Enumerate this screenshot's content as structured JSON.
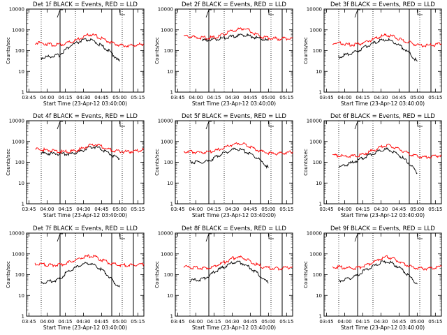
{
  "figure": {
    "x_tick_labels": [
      "03:45",
      "04:00",
      "04:15",
      "04:30",
      "04:45",
      "05:00",
      "05:15"
    ],
    "y_tick_labels": [
      "1",
      "10",
      "100",
      "1000",
      "10000"
    ],
    "xlabel": "Start Time (23-Apr-12 03:40:00)",
    "ylabel": "Counts/sec",
    "colors": {
      "events": "#000000",
      "lld": "#ff0000"
    }
  },
  "chart_data": [
    {
      "type": "line",
      "title": "Det 1f BLACK = Events, RED = LLD",
      "xlabel": "Start Time (23-Apr-12 03:40:00)",
      "ylabel": "Counts/sec",
      "ylim": [
        1,
        10000
      ],
      "yscale": "log",
      "x": [
        "03:50",
        "03:55",
        "04:00",
        "04:05",
        "04:10",
        "04:15",
        "04:20",
        "04:25",
        "04:30",
        "04:35",
        "04:40",
        "04:45",
        "04:50",
        "04:55",
        "05:00",
        "05:05",
        "05:10",
        "05:15",
        "05:20"
      ],
      "series": [
        {
          "values": [
            null,
            45,
            50,
            55,
            60,
            110,
            180,
            240,
            320,
            330,
            260,
            170,
            110,
            60,
            30,
            null,
            null,
            null,
            null
          ]
        },
        {
          "values": [
            240,
            230,
            210,
            190,
            190,
            220,
            260,
            330,
            450,
            600,
            520,
            380,
            280,
            220,
            190,
            170,
            175,
            190,
            210
          ]
        }
      ]
    },
    {
      "type": "line",
      "title": "Det 2f BLACK = Events, RED = LLD",
      "xlabel": "Start Time (23-Apr-12 03:40:00)",
      "ylabel": "Counts/sec",
      "ylim": [
        1,
        10000
      ],
      "yscale": "log",
      "x": [
        "03:50",
        "03:55",
        "04:00",
        "04:05",
        "04:10",
        "04:15",
        "04:20",
        "04:25",
        "04:30",
        "04:35",
        "04:40",
        "04:45",
        "04:50",
        "04:55",
        "05:00",
        "05:05",
        "05:10",
        "05:15",
        "05:20"
      ],
      "series": [
        {
          "values": [
            null,
            null,
            null,
            300,
            320,
            350,
            380,
            420,
            480,
            540,
            560,
            500,
            420,
            360,
            300,
            null,
            null,
            null,
            null
          ]
        },
        {
          "values": [
            480,
            470,
            440,
            420,
            410,
            430,
            520,
            700,
            900,
            1050,
            1150,
            900,
            600,
            450,
            400,
            380,
            370,
            380,
            420
          ]
        }
      ]
    },
    {
      "type": "line",
      "title": "Det 3f BLACK = Events, RED = LLD",
      "xlabel": "Start Time (23-Apr-12 03:40:00)",
      "ylabel": "Counts/sec",
      "ylim": [
        1,
        10000
      ],
      "yscale": "log",
      "x": [
        "03:50",
        "03:55",
        "04:00",
        "04:05",
        "04:10",
        "04:15",
        "04:20",
        "04:25",
        "04:30",
        "04:35",
        "04:40",
        "04:45",
        "04:50",
        "04:55",
        "05:00",
        "05:05",
        "05:10",
        "05:15",
        "05:20"
      ],
      "series": [
        {
          "values": [
            null,
            50,
            60,
            70,
            90,
            130,
            180,
            240,
            320,
            340,
            270,
            180,
            110,
            60,
            30,
            null,
            null,
            null,
            null
          ]
        },
        {
          "values": [
            240,
            230,
            210,
            190,
            200,
            230,
            290,
            370,
            480,
            560,
            480,
            360,
            280,
            230,
            190,
            170,
            175,
            190,
            210
          ]
        }
      ]
    },
    {
      "type": "line",
      "title": "Det 4f BLACK = Events, RED = LLD",
      "xlabel": "Start Time (23-Apr-12 03:40:00)",
      "ylabel": "Counts/sec",
      "ylim": [
        1,
        10000
      ],
      "yscale": "log",
      "x": [
        "03:50",
        "03:55",
        "04:00",
        "04:05",
        "04:10",
        "04:15",
        "04:20",
        "04:25",
        "04:30",
        "04:35",
        "04:40",
        "04:45",
        "04:50",
        "04:55",
        "05:00",
        "05:05",
        "05:10",
        "05:15",
        "05:20"
      ],
      "series": [
        {
          "values": [
            null,
            280,
            270,
            260,
            250,
            250,
            260,
            300,
            380,
            520,
            560,
            420,
            300,
            200,
            150,
            null,
            null,
            null,
            null
          ]
        },
        {
          "values": [
            420,
            410,
            380,
            350,
            330,
            320,
            330,
            380,
            480,
            640,
            760,
            580,
            430,
            360,
            330,
            320,
            330,
            360,
            420
          ]
        }
      ]
    },
    {
      "type": "line",
      "title": "Det 5f BLACK = Events, RED = LLD",
      "xlabel": "Start Time (23-Apr-12 03:40:00)",
      "ylabel": "Counts/sec",
      "ylim": [
        1,
        10000
      ],
      "yscale": "log",
      "x": [
        "03:50",
        "03:55",
        "04:00",
        "04:05",
        "04:10",
        "04:15",
        "04:20",
        "04:25",
        "04:30",
        "04:35",
        "04:40",
        "04:45",
        "04:50",
        "04:55",
        "05:00",
        "05:05",
        "05:10",
        "05:15",
        "05:20"
      ],
      "series": [
        {
          "values": [
            null,
            110,
            100,
            100,
            110,
            160,
            230,
            300,
            400,
            420,
            350,
            250,
            170,
            100,
            55,
            null,
            null,
            null,
            null
          ]
        },
        {
          "values": [
            330,
            320,
            300,
            290,
            300,
            340,
            420,
            540,
            700,
            820,
            720,
            540,
            400,
            320,
            280,
            260,
            270,
            290,
            310
          ]
        }
      ]
    },
    {
      "type": "line",
      "title": "Det 6f BLACK = Events, RED = LLD",
      "xlabel": "Start Time (23-Apr-12 03:40:00)",
      "ylabel": "Counts/sec",
      "ylim": [
        1,
        10000
      ],
      "yscale": "log",
      "x": [
        "03:50",
        "03:55",
        "04:00",
        "04:05",
        "04:10",
        "04:15",
        "04:20",
        "04:25",
        "04:30",
        "04:35",
        "04:40",
        "04:45",
        "04:50",
        "04:55",
        "05:00",
        "05:05",
        "05:10",
        "05:15",
        "05:20"
      ],
      "series": [
        {
          "values": [
            null,
            60,
            70,
            90,
            120,
            160,
            220,
            290,
            380,
            420,
            330,
            220,
            130,
            70,
            30,
            null,
            null,
            null,
            null
          ]
        },
        {
          "values": [
            220,
            210,
            200,
            190,
            200,
            240,
            310,
            400,
            560,
            680,
            580,
            430,
            320,
            240,
            200,
            180,
            185,
            200,
            220
          ]
        }
      ]
    },
    {
      "type": "line",
      "title": "Det 7f BLACK = Events, RED = LLD",
      "xlabel": "Start Time (23-Apr-12 03:40:00)",
      "ylabel": "Counts/sec",
      "ylim": [
        1,
        10000
      ],
      "yscale": "log",
      "x": [
        "03:50",
        "03:55",
        "04:00",
        "04:05",
        "04:10",
        "04:15",
        "04:20",
        "04:25",
        "04:30",
        "04:35",
        "04:40",
        "04:45",
        "04:50",
        "04:55",
        "05:00",
        "05:05",
        "05:10",
        "05:15",
        "05:20"
      ],
      "series": [
        {
          "values": [
            null,
            40,
            45,
            50,
            60,
            110,
            180,
            240,
            330,
            360,
            270,
            170,
            100,
            45,
            25,
            null,
            null,
            null,
            null
          ]
        },
        {
          "values": [
            330,
            320,
            300,
            290,
            300,
            340,
            420,
            540,
            700,
            780,
            700,
            520,
            390,
            320,
            290,
            280,
            290,
            300,
            320
          ]
        }
      ]
    },
    {
      "type": "line",
      "title": "Det 8f BLACK = Events, RED = LLD",
      "xlabel": "Start Time (23-Apr-12 03:40:00)",
      "ylabel": "Counts/sec",
      "ylim": [
        1,
        10000
      ],
      "yscale": "log",
      "x": [
        "03:50",
        "03:55",
        "04:00",
        "04:05",
        "04:10",
        "04:15",
        "04:20",
        "04:25",
        "04:30",
        "04:35",
        "04:40",
        "04:45",
        "04:50",
        "04:55",
        "05:00",
        "05:05",
        "05:10",
        "05:15",
        "05:20"
      ],
      "series": [
        {
          "values": [
            null,
            50,
            55,
            60,
            80,
            130,
            190,
            260,
            360,
            420,
            320,
            210,
            130,
            70,
            40,
            null,
            null,
            null,
            null
          ]
        },
        {
          "values": [
            240,
            230,
            215,
            205,
            210,
            250,
            330,
            430,
            600,
            720,
            600,
            430,
            310,
            240,
            210,
            195,
            200,
            215,
            240
          ]
        }
      ]
    },
    {
      "type": "line",
      "title": "Det 9f BLACK = Events, RED = LLD",
      "xlabel": "Start Time (23-Apr-12 03:40:00)",
      "ylabel": "Counts/sec",
      "ylim": [
        1,
        10000
      ],
      "yscale": "log",
      "x": [
        "03:50",
        "03:55",
        "04:00",
        "04:05",
        "04:10",
        "04:15",
        "04:20",
        "04:25",
        "04:30",
        "04:35",
        "04:40",
        "04:45",
        "04:50",
        "04:55",
        "05:00",
        "05:05",
        "05:10",
        "05:15",
        "05:20"
      ],
      "series": [
        {
          "values": [
            null,
            50,
            60,
            70,
            90,
            140,
            200,
            270,
            380,
            430,
            340,
            220,
            130,
            70,
            35,
            null,
            null,
            null,
            null
          ]
        },
        {
          "values": [
            240,
            230,
            215,
            205,
            210,
            250,
            330,
            430,
            600,
            720,
            600,
            430,
            310,
            240,
            210,
            195,
            200,
            215,
            240
          ]
        }
      ]
    }
  ]
}
